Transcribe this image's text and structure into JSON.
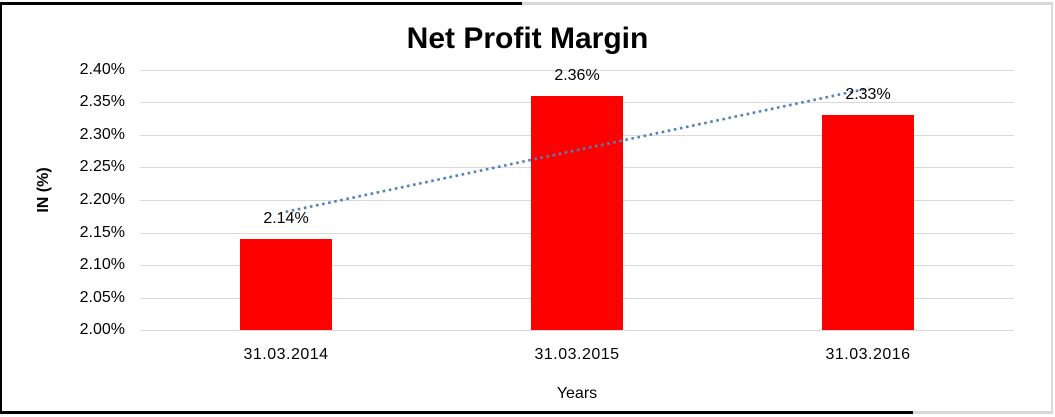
{
  "chart_data": {
    "type": "bar",
    "title": "Net Profit Margin",
    "xlabel": "Years",
    "ylabel": "IN (%)",
    "categories": [
      "31.03.2014",
      "31.03.2015",
      "31.03.2016"
    ],
    "values": [
      2.14,
      2.36,
      2.33
    ],
    "data_labels": [
      "2.14%",
      "2.36%",
      "2.33%"
    ],
    "ylim": [
      2.0,
      2.4
    ],
    "ytick_step": 0.05,
    "ytick_labels": [
      "2.00%",
      "2.05%",
      "2.10%",
      "2.15%",
      "2.20%",
      "2.25%",
      "2.30%",
      "2.35%",
      "2.40%"
    ],
    "grid": true,
    "legend": false,
    "bar_color": "#FF0000",
    "gridline_color": "#D9D9D9",
    "trendline": {
      "type": "linear",
      "style": "square-dot",
      "color": "#4F81BD"
    }
  },
  "frame": {
    "border_dark": "#000000",
    "border_light": "#D9D9D9"
  }
}
